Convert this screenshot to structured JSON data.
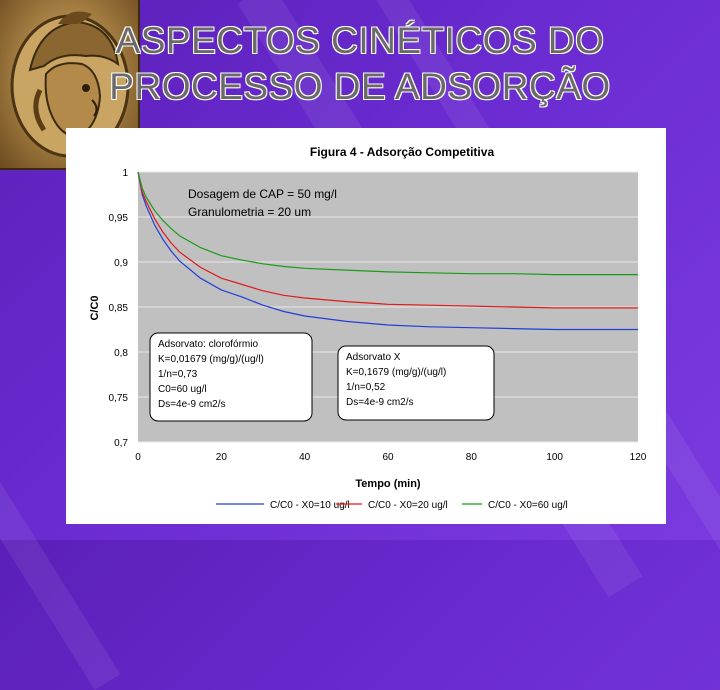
{
  "slide": {
    "title_line1": "ASPECTOS CINÉTICOS DO",
    "title_line2": "PROCESSO DE ADSORÇÃO"
  },
  "colors": {
    "background": "#6a2bd0",
    "plot_area": "#c0c0c0",
    "series_blue": "#1f3fd8",
    "series_red": "#e01a1a",
    "series_green": "#1a9a1a"
  },
  "chart_data": {
    "type": "line",
    "title": "Figura 4 - Adsorção Competitiva",
    "xlabel": "Tempo (min)",
    "ylabel": "C/C0",
    "xlim": [
      0,
      120
    ],
    "ylim": [
      0.7,
      1
    ],
    "xticks": [
      0,
      20,
      40,
      60,
      80,
      100,
      120
    ],
    "xtick_labels": [
      "0",
      "20",
      "40",
      "60",
      "80",
      "100",
      "120"
    ],
    "yticks": [
      0.7,
      0.75,
      0.8,
      0.85,
      0.9,
      0.95,
      1
    ],
    "ytick_labels": [
      "0,7",
      "0,75",
      "0,8",
      "0,85",
      "0,9",
      "0,95",
      "1"
    ],
    "grid": true,
    "legend_position": "bottom",
    "annotations": {
      "conditions": [
        "Dosagem de CAP = 50 mg/l",
        "Granulometria = 20 um"
      ],
      "box1": [
        "Adsorvato: clorofórmio",
        "K=0,01679 (mg/g)/(ug/l)",
        "1/n=0,73",
        "C0=60 ug/l",
        "Ds=4e-9 cm2/s"
      ],
      "box2": [
        "Adsorvato X",
        "K=0,1679 (mg/g)/(ug/l)",
        "1/n=0,52",
        "Ds=4e-9 cm2/s"
      ]
    },
    "x": [
      0,
      1,
      2,
      4,
      6,
      8,
      10,
      15,
      20,
      25,
      30,
      35,
      40,
      50,
      60,
      70,
      80,
      90,
      100,
      110,
      120
    ],
    "series": [
      {
        "name": "C/C0 - X0=10 ug/l",
        "color": "#1f3fd8",
        "values": [
          1.0,
          0.975,
          0.962,
          0.941,
          0.925,
          0.912,
          0.901,
          0.882,
          0.869,
          0.861,
          0.852,
          0.845,
          0.84,
          0.834,
          0.83,
          0.828,
          0.827,
          0.826,
          0.825,
          0.825,
          0.825
        ]
      },
      {
        "name": "C/C0 - X0=20 ug/l",
        "color": "#e01a1a",
        "values": [
          1.0,
          0.978,
          0.967,
          0.948,
          0.933,
          0.921,
          0.911,
          0.894,
          0.882,
          0.875,
          0.868,
          0.863,
          0.86,
          0.856,
          0.853,
          0.852,
          0.851,
          0.85,
          0.849,
          0.849,
          0.849
        ]
      },
      {
        "name": "C/C0 - X0=60 ug/l",
        "color": "#1a9a1a",
        "values": [
          1.0,
          0.982,
          0.972,
          0.957,
          0.946,
          0.937,
          0.929,
          0.916,
          0.907,
          0.902,
          0.898,
          0.895,
          0.893,
          0.891,
          0.889,
          0.888,
          0.887,
          0.887,
          0.886,
          0.886,
          0.886
        ]
      }
    ]
  }
}
